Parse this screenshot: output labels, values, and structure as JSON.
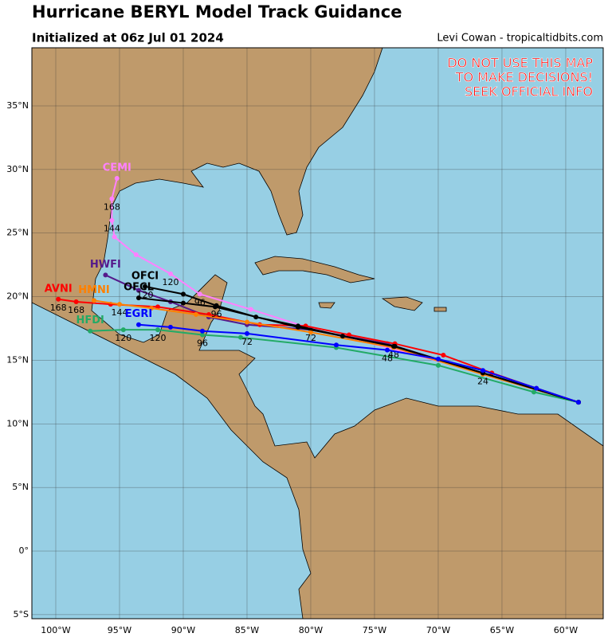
{
  "header": {
    "title": "Hurricane BERYL Model Track Guidance",
    "subtitle": "Initialized at 06z Jul 01 2024",
    "credit": "Levi Cowan - tropicaltidbits.com"
  },
  "warning": [
    "DO NOT USE THIS MAP",
    "TO MAKE DECISIONS!",
    "SEEK OFFICIAL INFO"
  ],
  "map": {
    "xlim": [
      -101.875,
      -57.06
    ],
    "ylim": [
      -5.32,
      39.57
    ],
    "grid": true,
    "xticks": [
      {
        "value": -100,
        "label": "100°W"
      },
      {
        "value": -95,
        "label": "95°W"
      },
      {
        "value": -90,
        "label": "90°W"
      },
      {
        "value": -85,
        "label": "85°W"
      },
      {
        "value": -80,
        "label": "80°W"
      },
      {
        "value": -75,
        "label": "75°W"
      },
      {
        "value": -70,
        "label": "70°W"
      },
      {
        "value": -65,
        "label": "65°W"
      },
      {
        "value": -60,
        "label": "60°W"
      }
    ],
    "yticks": [
      {
        "value": -5,
        "label": "5°S"
      },
      {
        "value": 0,
        "label": "0°"
      },
      {
        "value": 5,
        "label": "5°N"
      },
      {
        "value": 10,
        "label": "10°N"
      },
      {
        "value": 15,
        "label": "15°N"
      },
      {
        "value": 20,
        "label": "20°N"
      },
      {
        "value": 25,
        "label": "25°N"
      },
      {
        "value": 30,
        "label": "30°N"
      },
      {
        "value": 35,
        "label": "35°N"
      }
    ],
    "tracks": [
      {
        "name": "CEMI",
        "color": "#ff80ff",
        "lon": [
          -59,
          -66.5,
          -74,
          -80,
          -84.7,
          -88.7,
          -91,
          -93.7,
          -95.4,
          -95.6,
          -95.6,
          -95.2
        ],
        "lat": [
          11.7,
          14,
          16,
          17.5,
          19,
          20.2,
          21.8,
          23.3,
          24.7,
          26,
          27.7,
          29.3
        ],
        "hour_labels": [
          null,
          null,
          null,
          null,
          null,
          "96",
          "120",
          null,
          null,
          "144",
          "168",
          null
        ]
      },
      {
        "name": "HWFI",
        "color": "#551a8b",
        "lon": [
          -59,
          -66.5,
          -74,
          -80,
          -85,
          -88,
          -91,
          -93.5,
          -96.1
        ],
        "lat": [
          11.7,
          14,
          16.3,
          17.4,
          17.8,
          18.4,
          19.6,
          20.5,
          21.7
        ],
        "hour_labels": [
          null,
          null,
          null,
          "72",
          null,
          null,
          null,
          null,
          null
        ]
      },
      {
        "name": "AVNI",
        "color": "#ff0000",
        "lon": [
          -59,
          -62.3,
          -65.8,
          -69.6,
          -73.4,
          -77,
          -80.4,
          -84,
          -88,
          -92,
          -95.7,
          -98.4,
          -99.8
        ],
        "lat": [
          11.7,
          12.8,
          14,
          15.4,
          16.3,
          17,
          17.7,
          17.8,
          18.6,
          19.2,
          19.4,
          19.6,
          19.8
        ],
        "hour_labels": [
          null,
          null,
          null,
          null,
          null,
          null,
          null,
          null,
          null,
          null,
          null,
          "168",
          "168"
        ]
      },
      {
        "name": "HMNI",
        "color": "#ff8000",
        "lon": [
          -59,
          -66.5,
          -73.5,
          -80,
          -85,
          -89,
          -92.5,
          -95,
          -97
        ],
        "lat": [
          11.7,
          13.9,
          16,
          17.2,
          18,
          18.6,
          19.1,
          19.4,
          19.7
        ],
        "hour_labels": [
          null,
          null,
          null,
          null,
          null,
          null,
          null,
          "144",
          null
        ]
      },
      {
        "name": "HFDI",
        "color": "#22aa66",
        "lon": [
          -59,
          -62.5,
          -70,
          -78,
          -85.5,
          -88.5,
          -92,
          -94.7,
          -97.3
        ],
        "lat": [
          11.7,
          12.5,
          14.6,
          16,
          16.8,
          17,
          17.4,
          17.4,
          17.3
        ],
        "hour_labels": [
          null,
          null,
          null,
          null,
          null,
          "96",
          "120",
          "120",
          null
        ]
      },
      {
        "name": "OFCI",
        "color": "#000000",
        "lon": [
          -59,
          -66.5,
          -73.5,
          -77.5,
          -81,
          -84.3,
          -87.4,
          -90,
          -93
        ],
        "lat": [
          11.7,
          14,
          16.1,
          16.9,
          17.7,
          18.4,
          19.3,
          20.2,
          20.8
        ],
        "hour_labels": [
          null,
          null,
          "48",
          null,
          null,
          null,
          "96",
          null,
          "120"
        ]
      },
      {
        "name": "OFCL",
        "color": "#000000",
        "lon": [
          -59,
          -66.5,
          -73.4,
          -81,
          -87.5,
          -90,
          -93.5
        ],
        "lat": [
          11.7,
          14,
          16.1,
          17.6,
          19.2,
          19.5,
          19.9
        ],
        "hour_labels": [
          null,
          "24",
          null,
          null,
          null,
          null,
          null
        ]
      },
      {
        "name": "EGRI",
        "color": "#0000ff",
        "lon": [
          -59,
          -62.3,
          -66.5,
          -70,
          -74,
          -78,
          -85,
          -88.5,
          -91,
          -93.5
        ],
        "lat": [
          11.7,
          12.8,
          14.2,
          15.1,
          15.8,
          16.2,
          17.1,
          17.3,
          17.6,
          17.8
        ],
        "hour_labels": [
          null,
          null,
          null,
          null,
          "48",
          null,
          "72",
          null,
          null,
          null
        ]
      }
    ]
  }
}
